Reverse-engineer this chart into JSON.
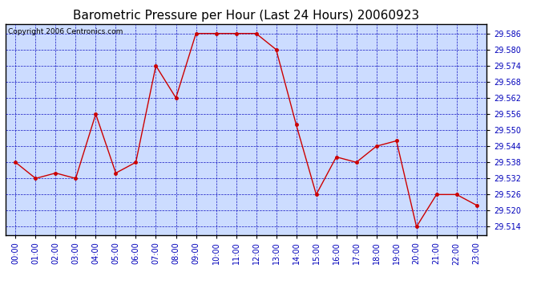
{
  "title": "Barometric Pressure per Hour (Last 24 Hours) 20060923",
  "copyright": "Copyright 2006 Centronics.com",
  "hours": [
    "00:00",
    "01:00",
    "02:00",
    "03:00",
    "04:00",
    "05:00",
    "06:00",
    "07:00",
    "08:00",
    "09:00",
    "10:00",
    "11:00",
    "12:00",
    "13:00",
    "14:00",
    "15:00",
    "16:00",
    "17:00",
    "18:00",
    "19:00",
    "20:00",
    "21:00",
    "22:00",
    "23:00"
  ],
  "values": [
    29.538,
    29.532,
    29.534,
    29.532,
    29.556,
    29.534,
    29.538,
    29.574,
    29.562,
    29.586,
    29.586,
    29.586,
    29.586,
    29.58,
    29.552,
    29.526,
    29.54,
    29.538,
    29.544,
    29.546,
    29.514,
    29.526,
    29.526,
    29.522
  ],
  "ylim_min": 29.511,
  "ylim_max": 29.5895,
  "yticks": [
    29.514,
    29.52,
    29.526,
    29.532,
    29.538,
    29.544,
    29.55,
    29.556,
    29.562,
    29.568,
    29.574,
    29.58,
    29.586
  ],
  "line_color": "#cc0000",
  "marker_color": "#cc0000",
  "plot_bg_color": "#ccdcff",
  "fig_bg_color": "#ffffff",
  "grid_color": "#0000bb",
  "title_color": "#000000",
  "axis_label_color": "#0000bb",
  "border_color": "#000000",
  "copyright_color": "#000000",
  "title_fontsize": 11,
  "copyright_fontsize": 6.5,
  "tick_fontsize": 7,
  "marker_size": 2.5,
  "line_width": 1.0
}
